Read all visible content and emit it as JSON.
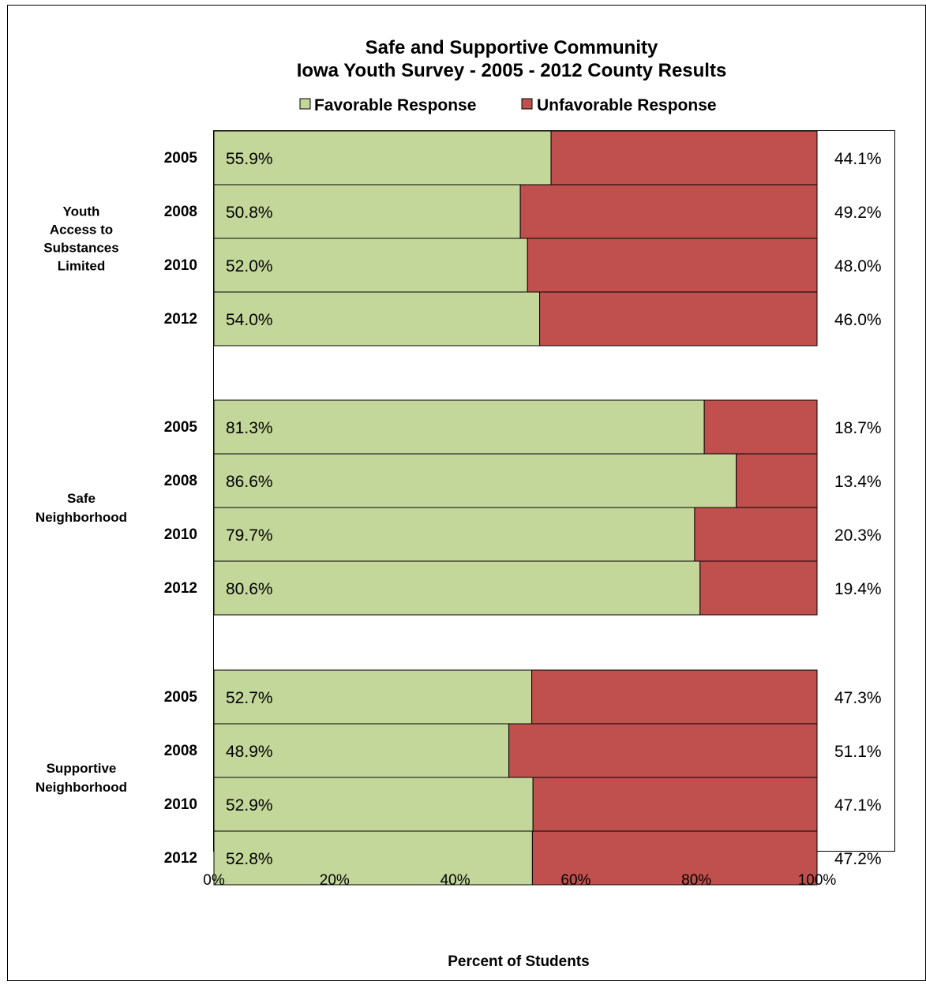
{
  "chart_data": {
    "type": "bar",
    "orientation": "horizontal",
    "stacked": true,
    "title": [
      "Safe and Supportive Community",
      "Iowa Youth Survey - 2005 - 2012 County Results"
    ],
    "legend": {
      "placement": "top",
      "items": [
        {
          "label": "Favorable Response",
          "color": "#c4d79b"
        },
        {
          "label": "Unfavorable Response",
          "color": "#c0504d"
        }
      ]
    },
    "xlabel": "Percent of Students",
    "xlim": [
      0,
      100
    ],
    "xticks": [
      "0%",
      "20%",
      "40%",
      "60%",
      "80%",
      "100%"
    ],
    "grid": false,
    "groups": [
      {
        "label": [
          "Youth",
          "Access to",
          "Substances",
          "Limited"
        ],
        "rows": [
          {
            "year": "2005",
            "favorable": 55.9,
            "unfavorable": 44.1,
            "favorable_label": "55.9%",
            "unfavorable_label": "44.1%"
          },
          {
            "year": "2008",
            "favorable": 50.8,
            "unfavorable": 49.2,
            "favorable_label": "50.8%",
            "unfavorable_label": "49.2%"
          },
          {
            "year": "2010",
            "favorable": 52.0,
            "unfavorable": 48.0,
            "favorable_label": "52.0%",
            "unfavorable_label": "48.0%"
          },
          {
            "year": "2012",
            "favorable": 54.0,
            "unfavorable": 46.0,
            "favorable_label": "54.0%",
            "unfavorable_label": "46.0%"
          }
        ]
      },
      {
        "label": [
          "Safe",
          "Neighborhood"
        ],
        "rows": [
          {
            "year": "2005",
            "favorable": 81.3,
            "unfavorable": 18.7,
            "favorable_label": "81.3%",
            "unfavorable_label": "18.7%"
          },
          {
            "year": "2008",
            "favorable": 86.6,
            "unfavorable": 13.4,
            "favorable_label": "86.6%",
            "unfavorable_label": "13.4%"
          },
          {
            "year": "2010",
            "favorable": 79.7,
            "unfavorable": 20.3,
            "favorable_label": "79.7%",
            "unfavorable_label": "20.3%"
          },
          {
            "year": "2012",
            "favorable": 80.6,
            "unfavorable": 19.4,
            "favorable_label": "80.6%",
            "unfavorable_label": "19.4%"
          }
        ]
      },
      {
        "label": [
          "Supportive",
          "Neighborhood"
        ],
        "rows": [
          {
            "year": "2005",
            "favorable": 52.7,
            "unfavorable": 47.3,
            "favorable_label": "52.7%",
            "unfavorable_label": "47.3%"
          },
          {
            "year": "2008",
            "favorable": 48.9,
            "unfavorable": 51.1,
            "favorable_label": "48.9%",
            "unfavorable_label": "51.1%"
          },
          {
            "year": "2010",
            "favorable": 52.9,
            "unfavorable": 47.1,
            "favorable_label": "52.9%",
            "unfavorable_label": "47.1%"
          },
          {
            "year": "2012",
            "favorable": 52.8,
            "unfavorable": 47.2,
            "favorable_label": "52.8%",
            "unfavorable_label": "47.2%"
          }
        ]
      }
    ]
  }
}
